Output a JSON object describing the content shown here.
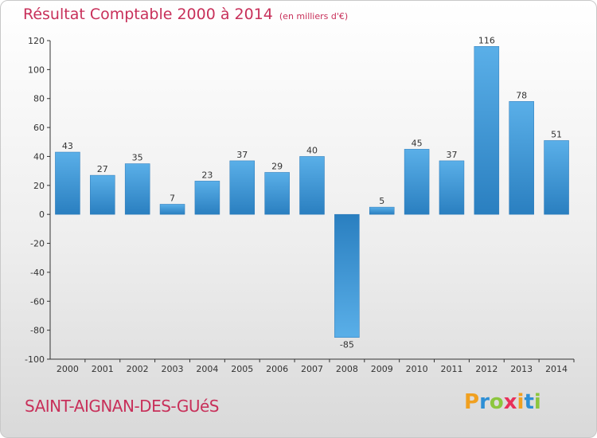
{
  "title": "Résultat Comptable 2000 à 2014",
  "subtitle": "(en milliers d'€)",
  "town": "SAINT-AIGNAN-DES-GUéS",
  "logo": {
    "p": "P",
    "r": "r",
    "o": "o",
    "x": "x",
    "i": "i",
    "t": "t",
    "i2": "i"
  },
  "colors": {
    "title": "#c8305a",
    "bar_light": "#5aafe8",
    "bar_dark": "#2a7fc0",
    "axis": "#333333"
  },
  "chart_data": {
    "type": "bar",
    "categories": [
      "2000",
      "2001",
      "2002",
      "2003",
      "2004",
      "2005",
      "2006",
      "2007",
      "2008",
      "2009",
      "2010",
      "2011",
      "2012",
      "2013",
      "2014"
    ],
    "values": [
      43,
      27,
      35,
      7,
      23,
      37,
      29,
      40,
      -85,
      5,
      45,
      37,
      116,
      78,
      51
    ],
    "ylim": [
      -100,
      120
    ],
    "yticks": [
      120,
      100,
      80,
      60,
      40,
      20,
      0,
      -20,
      -40,
      -60,
      -80,
      -100
    ],
    "grid": false,
    "xlabel": "",
    "ylabel": ""
  }
}
